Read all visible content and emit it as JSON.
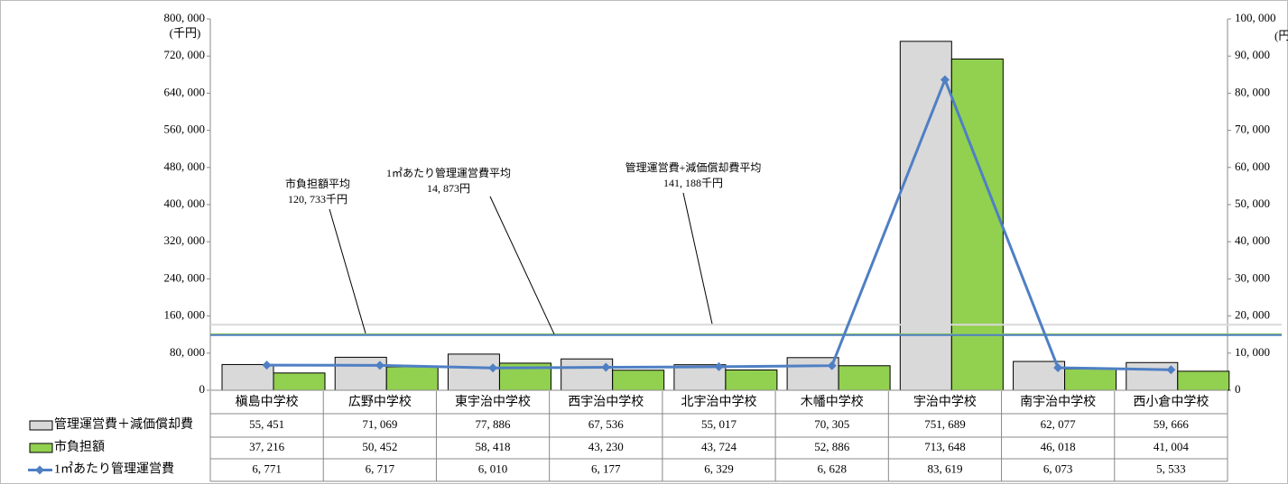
{
  "chart_data": {
    "type": "bar",
    "categories": [
      "槇島中学校",
      "広野中学校",
      "東宇治中学校",
      "西宇治中学校",
      "北宇治中学校",
      "木幡中学校",
      "宇治中学校",
      "南宇治中学校",
      "西小倉中学校"
    ],
    "series": [
      {
        "name": "管理運営費＋減価償却費",
        "color": "#d9d9d9",
        "values": [
          55451,
          71069,
          77886,
          67536,
          55017,
          70305,
          751689,
          62077,
          59666
        ],
        "value_labels": [
          "55, 451",
          "71, 069",
          "77, 886",
          "67, 536",
          "55, 017",
          "70, 305",
          "751, 689",
          "62, 077",
          "59, 666"
        ]
      },
      {
        "name": "市負担額",
        "color": "#92d050",
        "values": [
          37216,
          50452,
          58418,
          43230,
          43724,
          52886,
          713648,
          46018,
          41004
        ],
        "value_labels": [
          "37, 216",
          "50, 452",
          "58, 418",
          "43, 230",
          "43, 724",
          "52, 886",
          "713, 648",
          "46, 018",
          "41, 004"
        ]
      },
      {
        "name": "1㎡あたり管理運営費",
        "type": "line",
        "axis": "y2",
        "color": "#4f7fc4",
        "values": [
          6771,
          6717,
          6010,
          6177,
          6329,
          6628,
          83619,
          6073,
          5533
        ],
        "value_labels": [
          "6, 771",
          "6, 717",
          "6, 010",
          "6, 177",
          "6, 329",
          "6, 628",
          "83, 619",
          "6, 073",
          "5, 533"
        ]
      }
    ],
    "ylim": [
      0,
      800000
    ],
    "yticks": [
      0,
      {
        "value": 80000,
        "label": "80, 000"
      },
      {
        "value": 160000,
        "label": "160, 000"
      },
      {
        "value": 240000,
        "label": "240, 000"
      },
      {
        "value": 320000,
        "label": "320, 000"
      },
      {
        "value": 400000,
        "label": "400, 000"
      },
      {
        "value": 480000,
        "label": "480, 000"
      },
      {
        "value": 560000,
        "label": "560, 000"
      },
      {
        "value": 640000,
        "label": "640, 000"
      },
      {
        "value": 720000,
        "label": "720, 000"
      },
      {
        "value": 800000,
        "label": "800, 000"
      }
    ],
    "ylabel": "(千円)",
    "y2lim": [
      0,
      100000
    ],
    "y2ticks": [
      0,
      {
        "value": 10000,
        "label": "10, 000"
      },
      {
        "value": 20000,
        "label": "20, 000"
      },
      {
        "value": 30000,
        "label": "30, 000"
      },
      {
        "value": 40000,
        "label": "40, 000"
      },
      {
        "value": 50000,
        "label": "50, 000"
      },
      {
        "value": 60000,
        "label": "60, 000"
      },
      {
        "value": 70000,
        "label": "70, 000"
      },
      {
        "value": 80000,
        "label": "80, 000"
      },
      {
        "value": 90000,
        "label": "90, 000"
      },
      {
        "value": 100000,
        "label": "100, 000"
      }
    ],
    "y2label": "(円)",
    "averages": [
      {
        "name": "市負担額平均",
        "value": 120733,
        "label": "120, 733千円",
        "axis": "y",
        "color": "#92d050"
      },
      {
        "name": "1㎡あたり管理運営費平均",
        "value": 14873,
        "label": "14, 873円",
        "axis": "y2",
        "color": "#4f7fc4"
      },
      {
        "name": "管理運営費+減価償却費平均",
        "value": 141188,
        "label": "141, 188千円",
        "axis": "y",
        "color": "#d9d9d9"
      }
    ]
  }
}
